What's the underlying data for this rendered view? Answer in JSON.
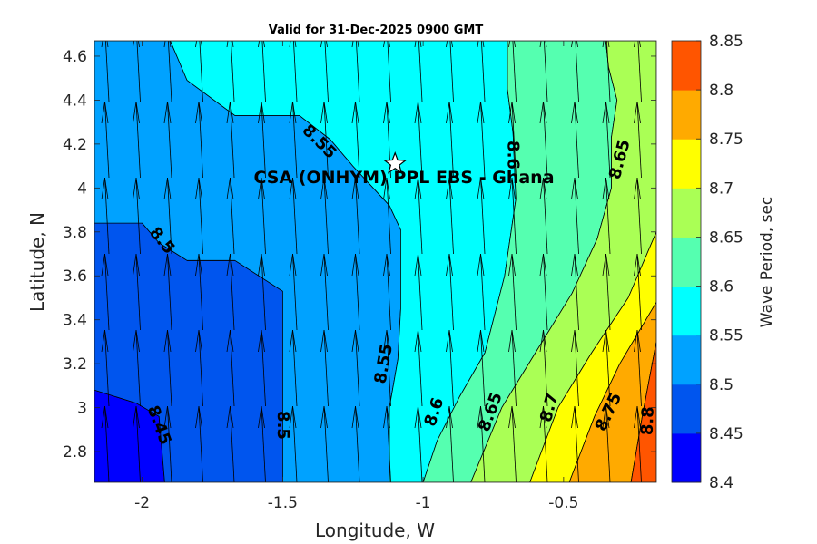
{
  "chart_data": {
    "type": "contour",
    "title": "Valid for 31-Dec-2025 0900 GMT",
    "xlabel": "Longitude, W",
    "ylabel": "Latitude, N",
    "xlim": [
      -2.17,
      -0.17
    ],
    "ylim": [
      2.66,
      4.67
    ],
    "x_ticks": [
      -2,
      -1.5,
      -1,
      -0.5
    ],
    "x_tick_labels": [
      "-2",
      "-1.5",
      "-1",
      "-0.5"
    ],
    "y_ticks": [
      2.8,
      3.0,
      3.2,
      3.4,
      3.6,
      3.8,
      4.0,
      4.2,
      4.4,
      4.6
    ],
    "y_tick_labels": [
      "2.8",
      "3",
      "3.2",
      "3.4",
      "3.6",
      "3.8",
      "4",
      "4.2",
      "4.4",
      "4.6"
    ],
    "colorbar": {
      "label": "Wave Period, sec",
      "levels": [
        8.4,
        8.45,
        8.5,
        8.55,
        8.6,
        8.65,
        8.7,
        8.75,
        8.8,
        8.85
      ],
      "tick_labels": [
        "8.4",
        "8.45",
        "8.5",
        "8.55",
        "8.6",
        "8.65",
        "8.7",
        "8.75",
        "8.8",
        "8.85"
      ],
      "colors": [
        "#0000ff",
        "#0055ee",
        "#00a2ff",
        "#00ffff",
        "#55ffb0",
        "#aaff55",
        "#ffff00",
        "#ffaa00",
        "#ff5500"
      ]
    },
    "regions": [
      {
        "level_band": [
          8.4,
          8.45
        ],
        "points": [
          [
            -2.17,
            2.66
          ],
          [
            -2.17,
            3.08
          ],
          [
            -2.02,
            3.02
          ],
          [
            -1.94,
            2.96
          ],
          [
            -1.92,
            2.66
          ]
        ]
      },
      {
        "level_band": [
          8.45,
          8.5
        ],
        "points": [
          [
            -2.17,
            3.08
          ],
          [
            -2.02,
            3.02
          ],
          [
            -1.94,
            2.96
          ],
          [
            -1.92,
            2.66
          ],
          [
            -1.5,
            2.66
          ],
          [
            -1.5,
            3.53
          ],
          [
            -1.67,
            3.67
          ],
          [
            -1.84,
            3.67
          ],
          [
            -1.94,
            3.75
          ],
          [
            -2.0,
            3.84
          ],
          [
            -2.17,
            3.84
          ]
        ]
      },
      {
        "level_band": [
          8.5,
          8.55
        ],
        "points": [
          [
            -2.17,
            3.84
          ],
          [
            -2.0,
            3.84
          ],
          [
            -1.94,
            3.75
          ],
          [
            -1.84,
            3.67
          ],
          [
            -1.67,
            3.67
          ],
          [
            -1.5,
            3.53
          ],
          [
            -1.5,
            2.66
          ],
          [
            -1.12,
            2.66
          ],
          [
            -1.12,
            3.0
          ],
          [
            -1.09,
            3.22
          ],
          [
            -1.08,
            3.45
          ],
          [
            -1.08,
            3.81
          ],
          [
            -1.12,
            3.92
          ],
          [
            -1.25,
            4.1
          ],
          [
            -1.33,
            4.22
          ],
          [
            -1.44,
            4.33
          ],
          [
            -1.67,
            4.33
          ],
          [
            -1.84,
            4.49
          ],
          [
            -1.9,
            4.67
          ],
          [
            -2.17,
            4.67
          ]
        ]
      },
      {
        "level_band": [
          8.55,
          8.6
        ],
        "points": [
          [
            -1.9,
            4.67
          ],
          [
            -1.84,
            4.49
          ],
          [
            -1.67,
            4.33
          ],
          [
            -1.44,
            4.33
          ],
          [
            -1.33,
            4.22
          ],
          [
            -1.25,
            4.1
          ],
          [
            -1.12,
            3.92
          ],
          [
            -1.08,
            3.81
          ],
          [
            -1.08,
            3.45
          ],
          [
            -1.09,
            3.22
          ],
          [
            -1.12,
            3.0
          ],
          [
            -1.12,
            2.66
          ],
          [
            -1.0,
            2.66
          ],
          [
            -0.95,
            2.85
          ],
          [
            -0.87,
            3.05
          ],
          [
            -0.78,
            3.25
          ],
          [
            -0.71,
            3.6
          ],
          [
            -0.67,
            3.95
          ],
          [
            -0.68,
            4.25
          ],
          [
            -0.7,
            4.45
          ],
          [
            -0.7,
            4.67
          ]
        ]
      },
      {
        "level_band": [
          8.6,
          8.65
        ],
        "points": [
          [
            -0.7,
            4.67
          ],
          [
            -0.7,
            4.45
          ],
          [
            -0.68,
            4.25
          ],
          [
            -0.67,
            3.95
          ],
          [
            -0.71,
            3.6
          ],
          [
            -0.78,
            3.25
          ],
          [
            -0.87,
            3.05
          ],
          [
            -0.95,
            2.85
          ],
          [
            -1.0,
            2.66
          ],
          [
            -0.83,
            2.66
          ],
          [
            -0.72,
            3.0
          ],
          [
            -0.6,
            3.25
          ],
          [
            -0.47,
            3.52
          ],
          [
            -0.38,
            3.77
          ],
          [
            -0.33,
            4.0
          ],
          [
            -0.33,
            4.23
          ],
          [
            -0.31,
            4.4
          ],
          [
            -0.34,
            4.55
          ],
          [
            -0.35,
            4.67
          ]
        ]
      },
      {
        "level_band": [
          8.65,
          8.7
        ],
        "points": [
          [
            -0.35,
            4.67
          ],
          [
            -0.34,
            4.55
          ],
          [
            -0.31,
            4.4
          ],
          [
            -0.33,
            4.23
          ],
          [
            -0.33,
            4.0
          ],
          [
            -0.38,
            3.77
          ],
          [
            -0.47,
            3.52
          ],
          [
            -0.6,
            3.25
          ],
          [
            -0.72,
            3.0
          ],
          [
            -0.83,
            2.66
          ],
          [
            -0.62,
            2.66
          ],
          [
            -0.52,
            3.0
          ],
          [
            -0.4,
            3.25
          ],
          [
            -0.27,
            3.5
          ],
          [
            -0.17,
            3.8
          ],
          [
            -0.17,
            4.67
          ]
        ]
      },
      {
        "level_band": [
          8.7,
          8.75
        ],
        "points": [
          [
            -0.62,
            2.66
          ],
          [
            -0.52,
            3.0
          ],
          [
            -0.4,
            3.25
          ],
          [
            -0.27,
            3.5
          ],
          [
            -0.17,
            3.8
          ],
          [
            -0.17,
            3.48
          ],
          [
            -0.3,
            3.2
          ],
          [
            -0.39,
            2.96
          ],
          [
            -0.48,
            2.66
          ]
        ]
      },
      {
        "level_band": [
          8.75,
          8.8
        ],
        "points": [
          [
            -0.48,
            2.66
          ],
          [
            -0.39,
            2.96
          ],
          [
            -0.3,
            3.2
          ],
          [
            -0.17,
            3.48
          ],
          [
            -0.17,
            3.3
          ],
          [
            -0.22,
            2.96
          ],
          [
            -0.26,
            2.66
          ]
        ]
      },
      {
        "level_band": [
          8.8,
          8.85
        ],
        "points": [
          [
            -0.26,
            2.66
          ],
          [
            -0.22,
            2.96
          ],
          [
            -0.17,
            3.3
          ],
          [
            -0.17,
            2.66
          ]
        ]
      }
    ],
    "contour_labels": [
      {
        "text": "8.45",
        "lon": -1.94,
        "lat": 2.92,
        "angle": 70
      },
      {
        "text": "8.5",
        "lon": -1.93,
        "lat": 3.76,
        "angle": 50
      },
      {
        "text": "8.55",
        "lon": -1.37,
        "lat": 4.21,
        "angle": 45
      },
      {
        "text": "8.5",
        "lon": -1.5,
        "lat": 2.92,
        "angle": 90
      },
      {
        "text": "8.55",
        "lon": -1.14,
        "lat": 3.2,
        "angle": -80
      },
      {
        "text": "8.6",
        "lon": -0.96,
        "lat": 2.98,
        "angle": -72
      },
      {
        "text": "8.6",
        "lon": -0.68,
        "lat": 4.15,
        "angle": 90
      },
      {
        "text": "8.65",
        "lon": -0.76,
        "lat": 2.98,
        "angle": -70
      },
      {
        "text": "8.65",
        "lon": -0.3,
        "lat": 4.13,
        "angle": -75
      },
      {
        "text": "8.7",
        "lon": -0.55,
        "lat": 3.0,
        "angle": -75
      },
      {
        "text": "8.75",
        "lon": -0.34,
        "lat": 2.98,
        "angle": -65
      },
      {
        "text": "8.8",
        "lon": -0.2,
        "lat": 2.94,
        "angle": -88
      }
    ],
    "site": {
      "name": "CSA (ONHYM) PPL EBS  - Ghana",
      "lon": -1.1,
      "lat": 4.11,
      "marker": "star"
    },
    "wave_direction": "northward arrows, slightly northeast-tilted, on a regular grid"
  }
}
